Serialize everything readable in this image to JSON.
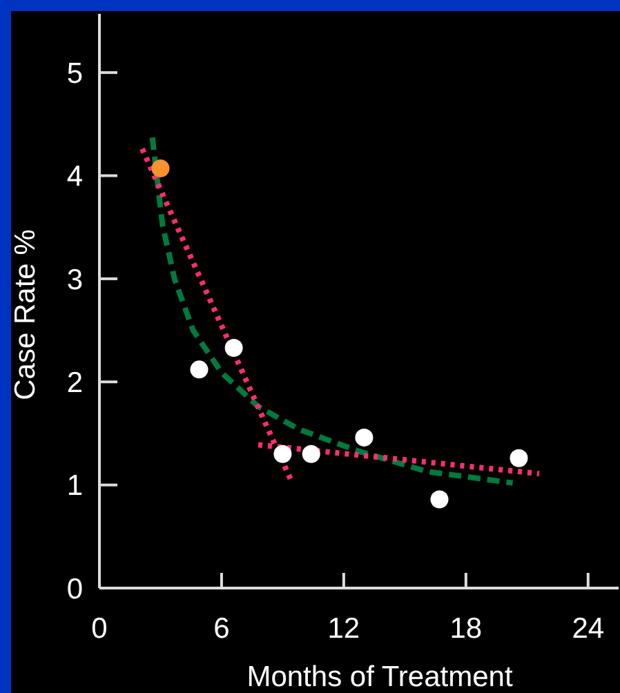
{
  "chart_data": {
    "type": "scatter",
    "xlabel": "Months of Treatment",
    "ylabel": "Case Rate %",
    "xlim": [
      0,
      25.5
    ],
    "ylim": [
      0,
      5.57
    ],
    "xticks": [
      0,
      6,
      12,
      18,
      24
    ],
    "yticks": [
      0,
      1,
      2,
      3,
      4,
      5
    ],
    "grid": false,
    "series": [
      {
        "type": "line",
        "color": "#007a3d",
        "line_style": "dashed",
        "marker": "none",
        "x": [
          2.6,
          3.1,
          3.7,
          4.6,
          6.0,
          7.8,
          9.8,
          12.7,
          16.1,
          20.3
        ],
        "values": [
          4.37,
          3.52,
          2.99,
          2.5,
          2.09,
          1.76,
          1.54,
          1.33,
          1.13,
          1.02
        ]
      },
      {
        "type": "line",
        "color": "#ff2d6e",
        "line_style": "dotted",
        "marker": "none",
        "x": [
          2.1,
          9.4
        ],
        "values": [
          4.26,
          1.05
        ]
      },
      {
        "type": "line",
        "color": "#ff2d6e",
        "line_style": "dotted",
        "marker": "none",
        "x": [
          7.8,
          21.6
        ],
        "values": [
          1.39,
          1.11
        ]
      },
      {
        "marker": "circle",
        "colors": [
          "#f7922e",
          "#ffffff",
          "#ffffff",
          "#ffffff",
          "#ffffff",
          "#ffffff",
          "#ffffff",
          "#ffffff"
        ],
        "x": [
          3.0,
          4.9,
          6.6,
          9.0,
          10.4,
          13.0,
          16.7,
          20.6
        ],
        "values": [
          4.07,
          2.12,
          2.33,
          1.3,
          1.3,
          1.46,
          0.86,
          1.26
        ]
      }
    ]
  }
}
